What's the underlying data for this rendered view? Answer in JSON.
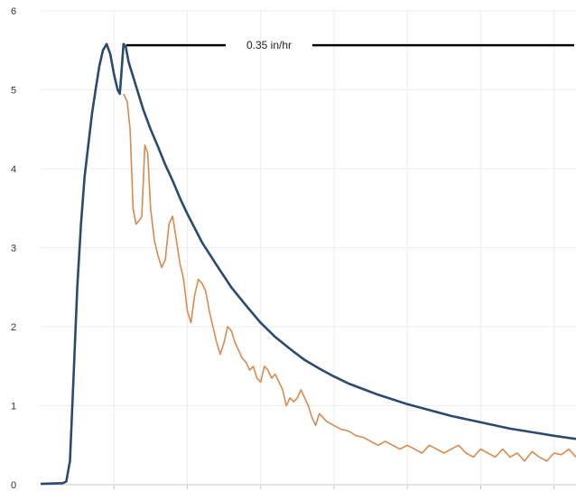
{
  "chart_data": {
    "type": "line",
    "title": "",
    "xlabel": "",
    "ylabel": "",
    "ylim": [
      0,
      6
    ],
    "xlim": [
      0,
      7.3
    ],
    "y_ticks": [
      "0",
      "1",
      "2",
      "3",
      "4",
      "5",
      "6"
    ],
    "grid": "vertical gridlines and horizontal gridlines",
    "annotation": {
      "text": "0.35 in/hr",
      "y": 5.57,
      "x_start": 0.35,
      "x_end": 7.3
    },
    "series": [
      {
        "color": "#2b4a6e",
        "points": [
          [
            0,
            0.01
          ],
          [
            0.3,
            0.02
          ],
          [
            0.35,
            0.04
          ],
          [
            0.4,
            0.3
          ],
          [
            0.45,
            1.4
          ],
          [
            0.5,
            2.5
          ],
          [
            0.55,
            3.3
          ],
          [
            0.6,
            3.9
          ],
          [
            0.65,
            4.3
          ],
          [
            0.7,
            4.7
          ],
          [
            0.75,
            5.0
          ],
          [
            0.8,
            5.3
          ],
          [
            0.85,
            5.5
          ],
          [
            0.9,
            5.58
          ],
          [
            0.95,
            5.45
          ],
          [
            1.0,
            5.2
          ],
          [
            1.05,
            5.0
          ],
          [
            1.08,
            4.95
          ],
          [
            1.1,
            5.2
          ],
          [
            1.13,
            5.58
          ],
          [
            1.16,
            5.55
          ],
          [
            1.2,
            5.35
          ],
          [
            1.3,
            5.05
          ],
          [
            1.4,
            4.75
          ],
          [
            1.5,
            4.5
          ],
          [
            1.6,
            4.28
          ],
          [
            1.7,
            4.05
          ],
          [
            1.8,
            3.85
          ],
          [
            1.9,
            3.63
          ],
          [
            2.0,
            3.43
          ],
          [
            2.2,
            3.07
          ],
          [
            2.4,
            2.78
          ],
          [
            2.6,
            2.5
          ],
          [
            2.8,
            2.27
          ],
          [
            3.0,
            2.05
          ],
          [
            3.2,
            1.87
          ],
          [
            3.4,
            1.72
          ],
          [
            3.6,
            1.58
          ],
          [
            3.8,
            1.47
          ],
          [
            4.0,
            1.37
          ],
          [
            4.2,
            1.28
          ],
          [
            4.4,
            1.21
          ],
          [
            4.6,
            1.14
          ],
          [
            4.8,
            1.08
          ],
          [
            5.0,
            1.02
          ],
          [
            5.2,
            0.97
          ],
          [
            5.4,
            0.92
          ],
          [
            5.6,
            0.87
          ],
          [
            5.8,
            0.83
          ],
          [
            6.0,
            0.79
          ],
          [
            6.2,
            0.75
          ],
          [
            6.4,
            0.71
          ],
          [
            6.6,
            0.68
          ],
          [
            6.8,
            0.65
          ],
          [
            7.0,
            0.62
          ],
          [
            7.3,
            0.58
          ]
        ]
      },
      {
        "color": "#d98a4e",
        "points": [
          [
            1.13,
            4.95
          ],
          [
            1.18,
            4.85
          ],
          [
            1.22,
            4.5
          ],
          [
            1.26,
            3.5
          ],
          [
            1.3,
            3.3
          ],
          [
            1.35,
            3.35
          ],
          [
            1.38,
            3.4
          ],
          [
            1.42,
            4.3
          ],
          [
            1.46,
            4.2
          ],
          [
            1.5,
            3.5
          ],
          [
            1.55,
            3.1
          ],
          [
            1.6,
            2.9
          ],
          [
            1.65,
            2.75
          ],
          [
            1.7,
            2.85
          ],
          [
            1.75,
            3.3
          ],
          [
            1.8,
            3.4
          ],
          [
            1.85,
            3.1
          ],
          [
            1.9,
            2.8
          ],
          [
            1.95,
            2.6
          ],
          [
            2.0,
            2.2
          ],
          [
            2.05,
            2.05
          ],
          [
            2.1,
            2.4
          ],
          [
            2.15,
            2.6
          ],
          [
            2.2,
            2.55
          ],
          [
            2.25,
            2.45
          ],
          [
            2.3,
            2.2
          ],
          [
            2.35,
            2.0
          ],
          [
            2.4,
            1.8
          ],
          [
            2.45,
            1.65
          ],
          [
            2.5,
            1.8
          ],
          [
            2.55,
            2.0
          ],
          [
            2.6,
            1.95
          ],
          [
            2.65,
            1.8
          ],
          [
            2.7,
            1.7
          ],
          [
            2.75,
            1.6
          ],
          [
            2.8,
            1.55
          ],
          [
            2.85,
            1.45
          ],
          [
            2.9,
            1.5
          ],
          [
            2.95,
            1.35
          ],
          [
            3.0,
            1.3
          ],
          [
            3.05,
            1.5
          ],
          [
            3.1,
            1.45
          ],
          [
            3.15,
            1.35
          ],
          [
            3.2,
            1.4
          ],
          [
            3.25,
            1.3
          ],
          [
            3.3,
            1.2
          ],
          [
            3.35,
            1.0
          ],
          [
            3.4,
            1.1
          ],
          [
            3.45,
            1.05
          ],
          [
            3.5,
            1.1
          ],
          [
            3.55,
            1.2
          ],
          [
            3.6,
            1.1
          ],
          [
            3.65,
            1.0
          ],
          [
            3.7,
            0.85
          ],
          [
            3.75,
            0.75
          ],
          [
            3.8,
            0.9
          ],
          [
            3.85,
            0.85
          ],
          [
            3.9,
            0.8
          ],
          [
            4.0,
            0.75
          ],
          [
            4.1,
            0.7
          ],
          [
            4.2,
            0.68
          ],
          [
            4.3,
            0.62
          ],
          [
            4.4,
            0.6
          ],
          [
            4.5,
            0.55
          ],
          [
            4.6,
            0.5
          ],
          [
            4.7,
            0.55
          ],
          [
            4.8,
            0.5
          ],
          [
            4.9,
            0.45
          ],
          [
            5.0,
            0.5
          ],
          [
            5.1,
            0.45
          ],
          [
            5.2,
            0.4
          ],
          [
            5.3,
            0.5
          ],
          [
            5.4,
            0.45
          ],
          [
            5.5,
            0.4
          ],
          [
            5.6,
            0.45
          ],
          [
            5.7,
            0.5
          ],
          [
            5.8,
            0.4
          ],
          [
            5.9,
            0.35
          ],
          [
            6.0,
            0.45
          ],
          [
            6.1,
            0.4
          ],
          [
            6.2,
            0.35
          ],
          [
            6.3,
            0.45
          ],
          [
            6.4,
            0.35
          ],
          [
            6.5,
            0.4
          ],
          [
            6.6,
            0.3
          ],
          [
            6.7,
            0.42
          ],
          [
            6.8,
            0.35
          ],
          [
            6.9,
            0.3
          ],
          [
            7.0,
            0.4
          ],
          [
            7.1,
            0.38
          ],
          [
            7.2,
            0.45
          ],
          [
            7.3,
            0.35
          ]
        ]
      }
    ]
  }
}
